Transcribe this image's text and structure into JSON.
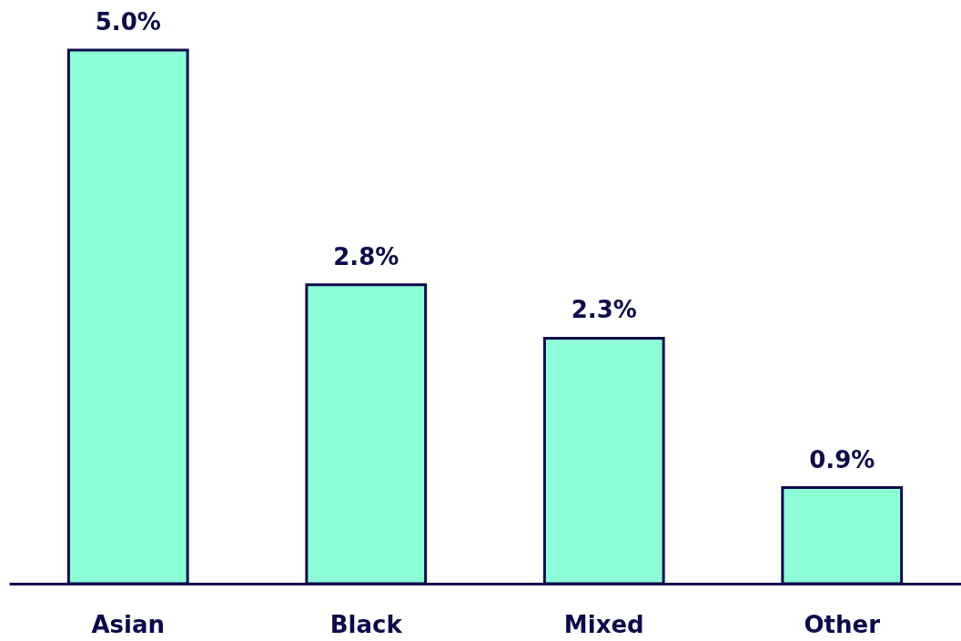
{
  "chart_data": {
    "type": "bar",
    "categories": [
      "Asian",
      "Black",
      "Mixed",
      "Other"
    ],
    "values": [
      5.0,
      2.8,
      2.3,
      0.9
    ],
    "value_labels": [
      "5.0%",
      "2.8%",
      "2.3%",
      "0.9%"
    ],
    "color": "#8cffd9",
    "tick_labels": "x"
  }
}
